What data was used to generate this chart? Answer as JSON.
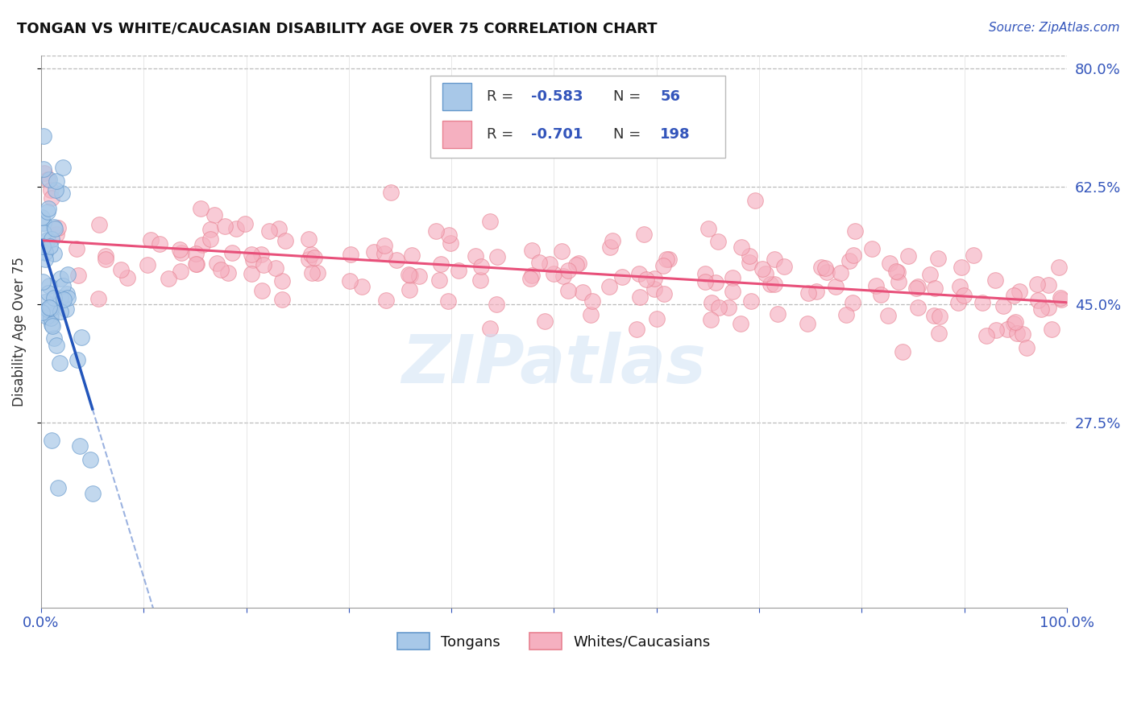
{
  "title": "TONGAN VS WHITE/CAUCASIAN DISABILITY AGE OVER 75 CORRELATION CHART",
  "source": "Source: ZipAtlas.com",
  "ylabel": "Disability Age Over 75",
  "xlim": [
    0,
    1.0
  ],
  "ylim": [
    0,
    0.82
  ],
  "yticks": [
    0.275,
    0.45,
    0.625,
    0.8
  ],
  "ytick_labels": [
    "27.5%",
    "45.0%",
    "62.5%",
    "80.0%"
  ],
  "background_color": "#ffffff",
  "grid_color": "#cccccc",
  "watermark": "ZIPatlas",
  "tongan_color": "#a8c8e8",
  "tongan_edge": "#6699cc",
  "white_color": "#f5b0c0",
  "white_edge": "#e88090",
  "trend_blue": "#2255bb",
  "trend_pink": "#e8507a",
  "legend_box_color": "#dddddd",
  "blue_r": "-0.583",
  "blue_n": "56",
  "pink_r": "-0.701",
  "pink_n": "198"
}
